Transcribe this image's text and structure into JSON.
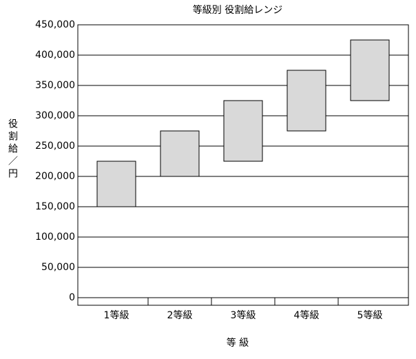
{
  "chart_data": {
    "type": "floating_bar",
    "title": "等級別  役割給レンジ",
    "x_label": "等 級",
    "y_label": "役割給／円",
    "categories": [
      "1等級",
      "2等級",
      "3等級",
      "4等級",
      "5等級"
    ],
    "low": [
      150000,
      200000,
      225000,
      275000,
      325000
    ],
    "high": [
      225000,
      275000,
      325000,
      375000,
      425000
    ],
    "color": "#d9d9d9",
    "ylim": [
      0,
      450000
    ],
    "yticks": [
      0,
      {
        "value": 50000,
        "label": "50,000"
      },
      {
        "value": 100000,
        "label": "100,000"
      },
      {
        "value": 150000,
        "label": "150,000"
      },
      {
        "value": 200000,
        "label": "200,000"
      },
      {
        "value": 250000,
        "label": "250,000"
      },
      {
        "value": 300000,
        "label": "300,000"
      },
      {
        "value": 350000,
        "label": "350,000"
      },
      {
        "value": 400000,
        "label": "400,000"
      },
      {
        "value": 450000,
        "label": "450,000"
      }
    ],
    "grid": true
  }
}
